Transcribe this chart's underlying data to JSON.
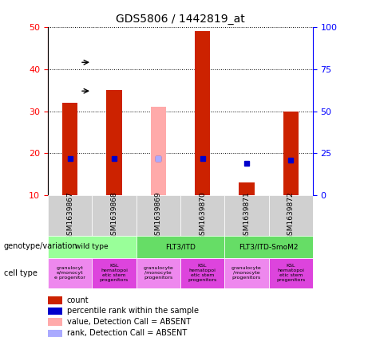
{
  "title": "GDS5806 / 1442819_at",
  "samples": [
    "GSM1639867",
    "GSM1639868",
    "GSM1639869",
    "GSM1639870",
    "GSM1639871",
    "GSM1639872"
  ],
  "count_values": [
    32,
    35,
    null,
    49,
    13,
    30
  ],
  "absent_value_values": [
    null,
    null,
    31,
    null,
    null,
    null
  ],
  "percentile_rank": [
    22,
    22,
    22,
    22,
    19,
    21
  ],
  "absent_rank_values": [
    null,
    null,
    22,
    null,
    null,
    null
  ],
  "ylim_left": [
    10,
    50
  ],
  "ylim_right": [
    0,
    100
  ],
  "yticks_left": [
    10,
    20,
    30,
    40,
    50
  ],
  "yticks_right": [
    0,
    25,
    50,
    75,
    100
  ],
  "bar_width": 0.35,
  "count_color": "#cc2200",
  "absent_count_color": "#ffaaaa",
  "rank_color": "#0000cc",
  "absent_rank_color": "#aaaaff",
  "genotype_groups": [
    {
      "label": "wild type",
      "span": [
        0,
        2
      ],
      "color": "#99ff99"
    },
    {
      "label": "FLT3/ITD",
      "span": [
        2,
        4
      ],
      "color": "#66ee66"
    },
    {
      "label": "FLT3/ITD-SmoM2",
      "span": [
        4,
        6
      ],
      "color": "#66ee66"
    }
  ],
  "cell_types": [
    {
      "label": "granulocyte/monocyte progenitors",
      "color": "#ff88ff"
    },
    {
      "label": "KSL hematopoietic stem progenitors",
      "color": "#ff44ff"
    },
    {
      "label": "granulocyte/monocyte progenitors",
      "color": "#ff88ff"
    },
    {
      "label": "KSL hematopoietic stem progenitors",
      "color": "#ff44ff"
    },
    {
      "label": "granulocyte/monocyte progenitors",
      "color": "#ff88ff"
    },
    {
      "label": "KSL hematopoietic stem progenitors",
      "color": "#ff44ff"
    }
  ],
  "cell_type_short": [
    "granulocyt\ne/monocyt\ne progenitor",
    "KSL\nhematopoi\netic stem\nprogenitors",
    "granulocyte\n/monocyte\nprogenitors",
    "KSL\nhematopoi\netic stem\nprogenitors",
    "granulocyte\n/monocyte\nprogenitors",
    "KSL\nhematopoi\netic stem\nprogenitors"
  ],
  "legend_items": [
    {
      "label": "count",
      "color": "#cc2200"
    },
    {
      "label": "percentile rank within the sample",
      "color": "#0000cc"
    },
    {
      "label": "value, Detection Call = ABSENT",
      "color": "#ffaaaa"
    },
    {
      "label": "rank, Detection Call = ABSENT",
      "color": "#aaaaff"
    }
  ]
}
